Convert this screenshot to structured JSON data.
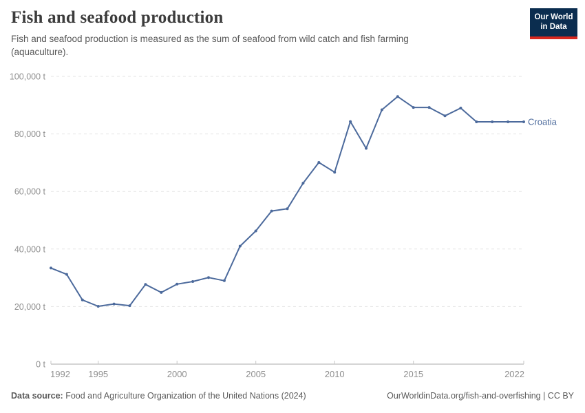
{
  "header": {
    "title": "Fish and seafood production",
    "subtitle": "Fish and seafood production is measured as the sum of seafood from wild catch and fish farming (aquaculture)."
  },
  "logo": {
    "line1": "Our World",
    "line2": "in Data",
    "navy": "#0b2d4f",
    "red": "#d8281e"
  },
  "chart_data": {
    "type": "line",
    "title": "Fish and seafood production",
    "unit": "t",
    "x": [
      1992,
      1993,
      1994,
      1995,
      1996,
      1997,
      1998,
      1999,
      2000,
      2001,
      2002,
      2003,
      2004,
      2005,
      2006,
      2007,
      2008,
      2009,
      2010,
      2011,
      2012,
      2013,
      2014,
      2015,
      2016,
      2017,
      2018,
      2019,
      2020,
      2021,
      2022
    ],
    "series": [
      {
        "name": "Croatia",
        "color": "#4C6A9C",
        "values": [
          33400,
          31200,
          22300,
          20100,
          20900,
          20300,
          27700,
          24900,
          27800,
          28700,
          30100,
          29000,
          41000,
          46300,
          53200,
          54000,
          62900,
          70100,
          66700,
          84300,
          75000,
          88400,
          93000,
          89200,
          89200,
          86300,
          89000,
          84200,
          84200,
          84200,
          84200
        ]
      }
    ],
    "xlim": [
      1992,
      2022
    ],
    "ylim": [
      0,
      100000
    ],
    "xticks": [
      1992,
      1995,
      2000,
      2005,
      2010,
      2015,
      2022
    ],
    "yticks": [
      0,
      20000,
      40000,
      60000,
      80000,
      100000
    ],
    "ytick_label_suffix": " t",
    "grid": "horizontal-dashed",
    "legend_position": "end-of-line-label",
    "colors": {
      "gridline": "#e3e3e3",
      "axis_line": "#a8a8a8",
      "tick_mark": "#c6c6c6",
      "tick_text": "#8f8f8f"
    }
  },
  "footer": {
    "source_label": "Data source:",
    "source_text": " Food and Agriculture Organization of the United Nations (2024)",
    "right_text": "OurWorldinData.org/fish-and-overfishing | CC BY"
  }
}
